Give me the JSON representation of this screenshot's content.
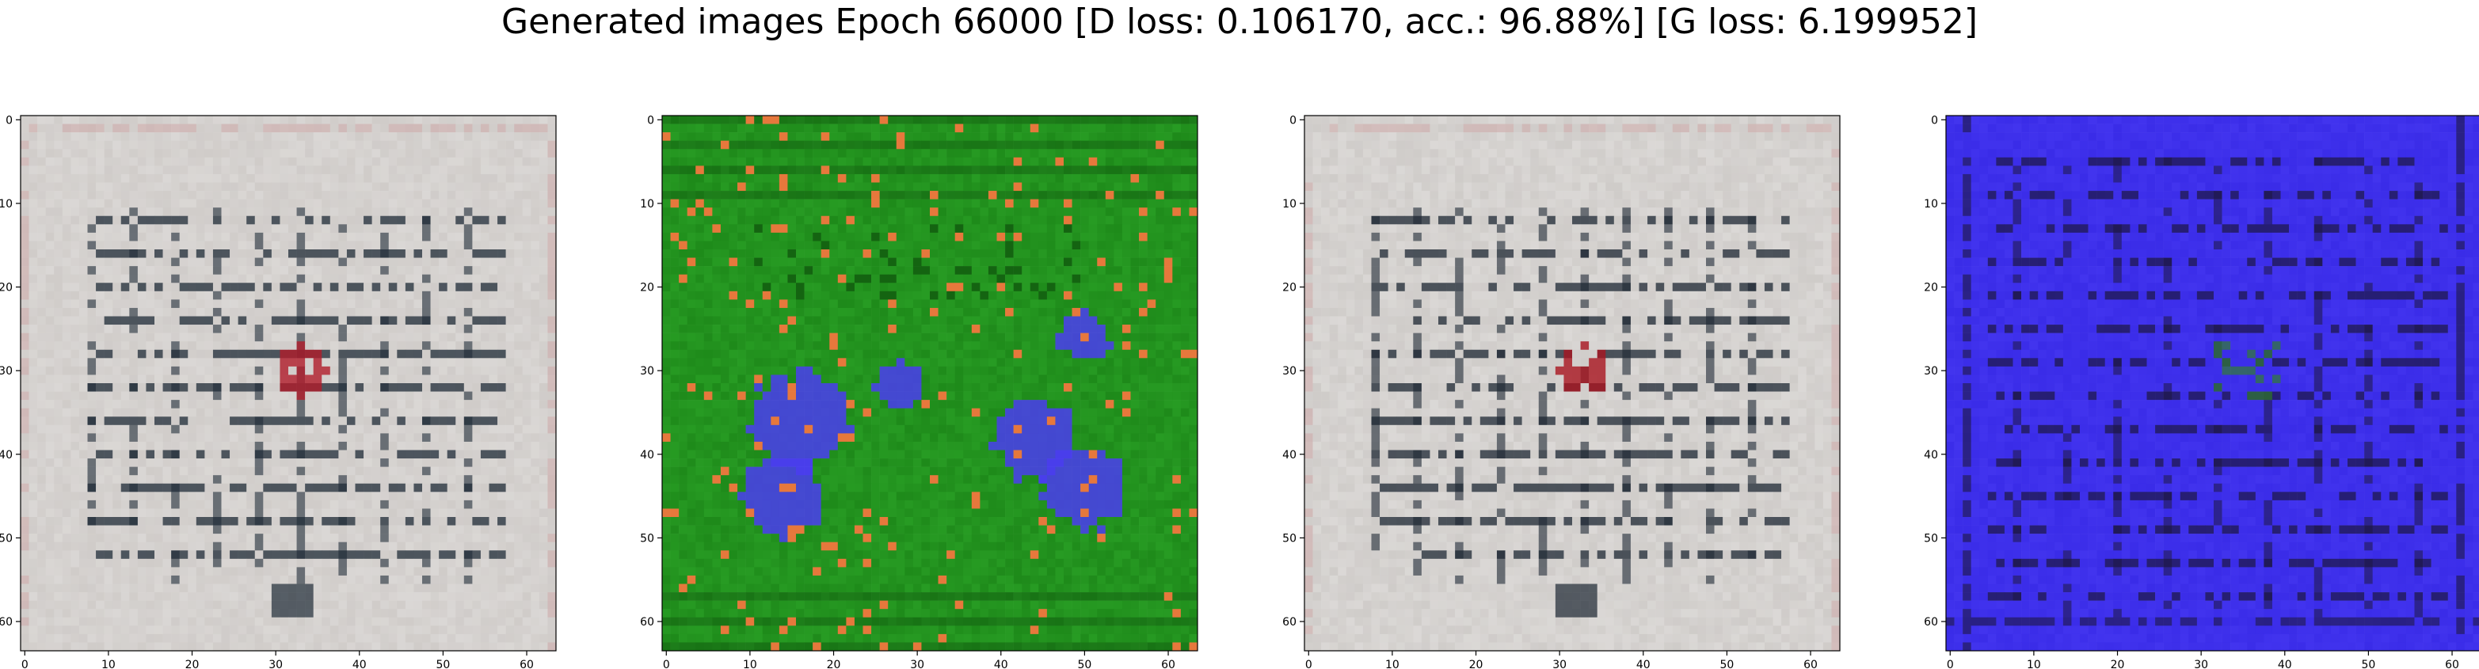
{
  "figure": {
    "title": "Generated images Epoch 66000 [D loss: 0.106170, acc.: 96.88%] [G loss: 6.199952]"
  },
  "axis_ticks": {
    "x": [
      "0",
      "10",
      "20",
      "30",
      "40",
      "50",
      "60"
    ],
    "y": [
      "0",
      "10",
      "20",
      "30",
      "40",
      "50",
      "60"
    ]
  },
  "image_grid": {
    "cells": 64
  },
  "panels": [
    {
      "label": "generated-image-1",
      "theme": "grey-grid",
      "colors": {
        "bg": "#c8c3c0",
        "light": "#e2e0de",
        "dark": "#1e2a36",
        "accent": "#b01c2a"
      }
    },
    {
      "label": "generated-image-2",
      "theme": "green-blobs",
      "colors": {
        "bg": "#1e8a1a",
        "light": "#2ea82a",
        "dark": "#0d4a0b",
        "accent": "#4a3cf0"
      }
    },
    {
      "label": "generated-image-3",
      "theme": "grey-grid",
      "colors": {
        "bg": "#c6c2bf",
        "light": "#e4e2e0",
        "dark": "#1c2632",
        "accent": "#a8141f"
      }
    },
    {
      "label": "generated-image-4",
      "theme": "blue-lines",
      "colors": {
        "bg": "#3a2ce8",
        "light": "#4a3cf5",
        "dark": "#1c1640",
        "accent": "#2f7a30"
      }
    }
  ]
}
